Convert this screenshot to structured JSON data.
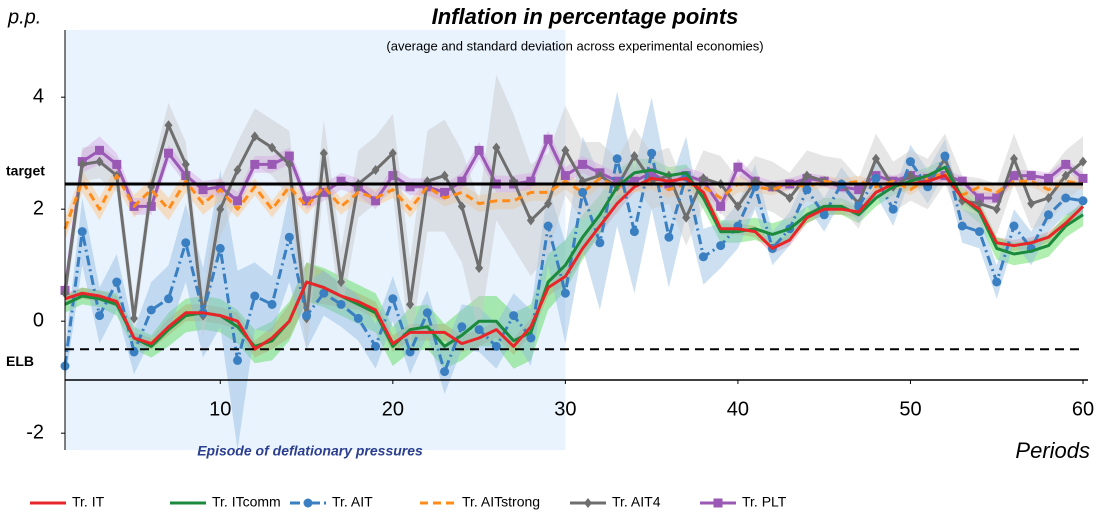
{
  "chart_data": {
    "type": "line",
    "title": "Inflation in percentage points",
    "subtitle": "(average and standard deviation across experimental economies)",
    "y_unit": "p.p.",
    "x_label": "Periods",
    "xlim": [
      1,
      60
    ],
    "xticks": [
      10,
      20,
      30,
      40,
      50,
      60
    ],
    "ylim": [
      -2.3,
      5.2
    ],
    "yticks": [
      4,
      2,
      0,
      -2
    ],
    "shaded_region": {
      "x": [
        1,
        30
      ],
      "label": "Episode of deflationary pressures",
      "color": "#e9f3fd"
    },
    "hlines": [
      {
        "value": 2.45,
        "label": "target",
        "style": "solid"
      },
      {
        "value": -0.5,
        "label": "ELB",
        "style": "dashed"
      }
    ],
    "x": [
      1,
      2,
      3,
      4,
      5,
      6,
      7,
      8,
      9,
      10,
      11,
      12,
      13,
      14,
      15,
      16,
      17,
      18,
      19,
      20,
      21,
      22,
      23,
      24,
      25,
      26,
      27,
      28,
      29,
      30,
      31,
      32,
      33,
      34,
      35,
      36,
      37,
      38,
      39,
      40,
      41,
      42,
      43,
      44,
      45,
      46,
      47,
      48,
      49,
      50,
      51,
      52,
      53,
      54,
      55,
      56,
      57,
      58,
      59,
      60
    ],
    "series": [
      {
        "name": "Tr. IT",
        "color": "#e8262a",
        "band_color": "#f4868a",
        "dash": "solid",
        "marker": null,
        "values": [
          0.4,
          0.5,
          0.45,
          0.35,
          -0.3,
          -0.4,
          -0.1,
          0.15,
          0.15,
          0.1,
          0.0,
          -0.5,
          -0.3,
          0.0,
          0.7,
          0.6,
          0.45,
          0.35,
          0.2,
          -0.4,
          -0.2,
          -0.2,
          -0.2,
          -0.4,
          -0.3,
          -0.15,
          -0.45,
          -0.1,
          0.6,
          0.8,
          1.3,
          1.7,
          2.1,
          2.4,
          2.55,
          2.5,
          2.55,
          2.3,
          1.65,
          1.65,
          1.6,
          1.3,
          1.45,
          1.85,
          2.0,
          2.0,
          1.95,
          2.3,
          2.45,
          2.45,
          2.5,
          2.6,
          2.2,
          2.0,
          1.4,
          1.35,
          1.4,
          1.5,
          1.75,
          2.05
        ],
        "std": [
          0.1,
          0.1,
          0.1,
          0.1,
          0.1,
          0.1,
          0.15,
          0.15,
          0.15,
          0.15,
          0.15,
          0.15,
          0.2,
          0.3,
          0.35,
          0.3,
          0.2,
          0.15,
          0.15,
          0.15,
          0.15,
          0.15,
          0.15,
          0.15,
          0.15,
          0.15,
          0.15,
          0.15,
          0.15,
          0.15,
          0.15,
          0.15,
          0.15,
          0.1,
          0.1,
          0.1,
          0.1,
          0.1,
          0.1,
          0.1,
          0.1,
          0.1,
          0.1,
          0.1,
          0.1,
          0.1,
          0.1,
          0.1,
          0.1,
          0.1,
          0.1,
          0.1,
          0.1,
          0.1,
          0.1,
          0.1,
          0.1,
          0.1,
          0.1,
          0.1
        ]
      },
      {
        "name": "Tr. ITcomm",
        "color": "#1b8a3c",
        "band_color": "#4fdc4f",
        "dash": "solid",
        "marker": null,
        "values": [
          0.3,
          0.45,
          0.4,
          0.3,
          -0.3,
          -0.45,
          -0.15,
          0.1,
          0.15,
          0.1,
          -0.1,
          -0.45,
          -0.35,
          0.0,
          0.7,
          0.6,
          0.45,
          0.3,
          0.15,
          -0.45,
          -0.15,
          -0.1,
          -0.45,
          -0.25,
          0.0,
          0.0,
          -0.35,
          -0.2,
          0.7,
          1.0,
          1.5,
          1.9,
          2.4,
          2.65,
          2.7,
          2.6,
          2.65,
          2.2,
          1.6,
          1.6,
          1.65,
          1.55,
          1.65,
          1.9,
          2.05,
          2.05,
          1.9,
          2.2,
          2.4,
          2.5,
          2.6,
          2.75,
          2.2,
          1.95,
          1.3,
          1.2,
          1.25,
          1.35,
          1.7,
          1.9
        ],
        "std": [
          0.15,
          0.15,
          0.15,
          0.2,
          0.2,
          0.2,
          0.3,
          0.3,
          0.3,
          0.3,
          0.3,
          0.3,
          0.35,
          0.35,
          0.35,
          0.35,
          0.35,
          0.35,
          0.35,
          0.35,
          0.4,
          0.4,
          0.4,
          0.45,
          0.45,
          0.45,
          0.5,
          0.5,
          0.5,
          0.45,
          0.4,
          0.35,
          0.3,
          0.25,
          0.2,
          0.15,
          0.15,
          0.2,
          0.2,
          0.2,
          0.2,
          0.2,
          0.2,
          0.15,
          0.15,
          0.15,
          0.15,
          0.15,
          0.15,
          0.15,
          0.15,
          0.15,
          0.2,
          0.2,
          0.2,
          0.2,
          0.2,
          0.2,
          0.2,
          0.2
        ]
      },
      {
        "name": "Tr. AIT",
        "color": "#3a7fc1",
        "band_color": "#8fbbe3",
        "dash": "dashdot",
        "marker": "circle",
        "values": [
          -0.8,
          1.6,
          0.1,
          0.7,
          -0.55,
          0.2,
          0.4,
          1.4,
          0.15,
          1.3,
          -0.7,
          0.45,
          0.3,
          1.5,
          0.1,
          0.5,
          0.3,
          0.05,
          -0.45,
          0.4,
          -0.55,
          0.15,
          -0.9,
          -0.1,
          -0.15,
          -0.45,
          0.1,
          -0.3,
          1.7,
          0.5,
          2.3,
          1.4,
          2.9,
          1.6,
          3.0,
          1.5,
          2.6,
          1.15,
          1.35,
          1.7,
          2.4,
          1.3,
          1.65,
          2.35,
          1.9,
          2.45,
          2.05,
          2.55,
          2.0,
          2.85,
          2.4,
          2.95,
          1.7,
          1.6,
          0.7,
          1.7,
          1.3,
          1.9,
          2.2,
          2.15
        ],
        "std": [
          0.3,
          0.6,
          0.5,
          0.5,
          0.4,
          0.5,
          0.6,
          0.7,
          0.8,
          1.4,
          1.6,
          0.6,
          0.5,
          0.8,
          0.6,
          0.4,
          0.4,
          0.4,
          0.4,
          0.4,
          0.4,
          0.4,
          0.4,
          0.4,
          0.4,
          0.4,
          0.4,
          0.5,
          0.7,
          0.9,
          1.0,
          1.2,
          1.2,
          1.1,
          1.0,
          0.9,
          0.7,
          0.5,
          0.4,
          0.4,
          0.4,
          0.3,
          0.3,
          0.3,
          0.3,
          0.3,
          0.3,
          0.3,
          0.3,
          0.3,
          0.3,
          0.3,
          0.3,
          0.3,
          0.3,
          0.3,
          0.3,
          0.3,
          0.3,
          0.3
        ]
      },
      {
        "name": "Tr. AITstrong",
        "color": "#ff8c1a",
        "band_color": "#ffc27f",
        "dash": "dashed",
        "marker": null,
        "values": [
          1.65,
          2.5,
          2.0,
          2.6,
          2.05,
          2.35,
          2.0,
          2.5,
          2.1,
          2.35,
          2.0,
          2.4,
          2.0,
          2.4,
          2.05,
          2.4,
          2.05,
          2.3,
          2.2,
          2.35,
          2.0,
          2.4,
          2.2,
          2.3,
          2.1,
          2.15,
          2.15,
          2.3,
          2.3,
          2.5,
          2.3,
          2.55,
          2.4,
          2.45,
          2.5,
          2.35,
          2.45,
          2.4,
          2.2,
          2.45,
          2.4,
          2.35,
          2.45,
          2.4,
          2.5,
          2.45,
          2.5,
          2.4,
          2.5,
          2.35,
          2.55,
          2.65,
          2.25,
          2.4,
          2.3,
          2.5,
          2.5,
          2.35,
          2.5,
          2.45
        ],
        "std": [
          0.2,
          0.2,
          0.2,
          0.2,
          0.2,
          0.2,
          0.2,
          0.2,
          0.2,
          0.2,
          0.15,
          0.15,
          0.15,
          0.15,
          0.15,
          0.15,
          0.15,
          0.15,
          0.15,
          0.15,
          0.15,
          0.15,
          0.15,
          0.15,
          0.15,
          0.15,
          0.15,
          0.15,
          0.15,
          0.15,
          0.15,
          0.15,
          0.15,
          0.15,
          0.15,
          0.15,
          0.15,
          0.15,
          0.15,
          0.15,
          0.1,
          0.1,
          0.1,
          0.1,
          0.1,
          0.1,
          0.1,
          0.1,
          0.1,
          0.1,
          0.1,
          0.1,
          0.1,
          0.1,
          0.1,
          0.1,
          0.1,
          0.1,
          0.1,
          0.1
        ]
      },
      {
        "name": "Tr. AIT4",
        "color": "#6e6e6e",
        "band_color": "#c8c8c8",
        "dash": "solid",
        "marker": "diamond",
        "values": [
          0.5,
          2.8,
          2.85,
          2.6,
          0.05,
          2.4,
          3.5,
          2.8,
          0.1,
          2.0,
          2.7,
          3.3,
          3.1,
          2.8,
          0.05,
          3.0,
          0.7,
          2.45,
          2.7,
          3.0,
          0.3,
          2.5,
          2.6,
          2.05,
          0.95,
          3.1,
          2.5,
          1.8,
          2.1,
          3.05,
          2.5,
          2.6,
          2.4,
          2.95,
          2.5,
          2.6,
          1.85,
          2.55,
          2.45,
          2.05,
          2.5,
          2.4,
          2.2,
          2.6,
          2.5,
          2.45,
          2.1,
          2.9,
          2.4,
          2.6,
          2.45,
          2.9,
          2.15,
          2.1,
          2.0,
          2.9,
          2.1,
          2.2,
          2.6,
          2.85
        ],
        "std": [
          0.3,
          0.3,
          0.3,
          0.3,
          0.3,
          0.3,
          0.4,
          0.4,
          0.4,
          0.5,
          0.5,
          0.5,
          0.5,
          0.6,
          0.6,
          0.6,
          0.6,
          0.6,
          0.6,
          0.7,
          0.8,
          0.9,
          1.0,
          1.0,
          1.2,
          1.3,
          1.2,
          1.0,
          0.9,
          0.8,
          0.7,
          0.6,
          0.5,
          0.5,
          0.5,
          0.5,
          0.5,
          0.5,
          0.5,
          0.5,
          0.45,
          0.45,
          0.45,
          0.45,
          0.45,
          0.45,
          0.45,
          0.45,
          0.45,
          0.45,
          0.45,
          0.45,
          0.45,
          0.45,
          0.45,
          0.45,
          0.45,
          0.45,
          0.45,
          0.45
        ]
      },
      {
        "name": "Tr. PLT",
        "color": "#9b59b6",
        "band_color": "#d4a6e3",
        "dash": "solid",
        "marker": "square",
        "values": [
          0.55,
          2.85,
          3.05,
          2.8,
          2.05,
          2.05,
          3.0,
          2.6,
          2.35,
          2.4,
          2.15,
          2.8,
          2.8,
          2.95,
          2.15,
          2.3,
          2.5,
          2.4,
          2.15,
          2.6,
          2.4,
          2.4,
          2.3,
          2.5,
          3.05,
          2.45,
          2.45,
          2.5,
          3.25,
          2.6,
          2.8,
          2.65,
          2.5,
          2.5,
          2.65,
          2.45,
          2.6,
          2.5,
          2.05,
          2.75,
          2.5,
          2.4,
          2.45,
          2.55,
          2.5,
          2.4,
          2.35,
          2.6,
          2.5,
          2.6,
          2.55,
          2.6,
          2.5,
          2.2,
          2.2,
          2.6,
          2.6,
          2.55,
          2.8,
          2.55
        ],
        "std": [
          0.15,
          0.2,
          0.25,
          0.2,
          0.15,
          0.15,
          0.15,
          0.15,
          0.15,
          0.15,
          0.15,
          0.15,
          0.15,
          0.15,
          0.15,
          0.15,
          0.15,
          0.15,
          0.15,
          0.15,
          0.15,
          0.15,
          0.15,
          0.15,
          0.15,
          0.15,
          0.15,
          0.15,
          0.15,
          0.15,
          0.15,
          0.15,
          0.15,
          0.15,
          0.15,
          0.15,
          0.15,
          0.15,
          0.15,
          0.15,
          0.1,
          0.1,
          0.1,
          0.1,
          0.1,
          0.1,
          0.1,
          0.1,
          0.1,
          0.1,
          0.1,
          0.1,
          0.1,
          0.1,
          0.1,
          0.1,
          0.1,
          0.1,
          0.1,
          0.1
        ]
      }
    ]
  }
}
